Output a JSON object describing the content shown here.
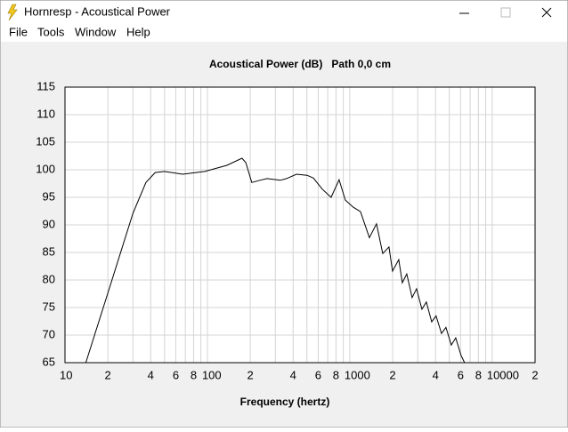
{
  "window": {
    "title": "Hornresp - Acoustical Power"
  },
  "menu": [
    "File",
    "Tools",
    "Window",
    "Help"
  ],
  "chart_data": {
    "type": "line",
    "title": "Acoustical Power (dB)   Path 0,0 cm",
    "x_label": "Frequency (hertz)",
    "x_scale": "log",
    "xlim": [
      10,
      20000
    ],
    "xticks": [
      10,
      {
        "value": 20,
        "label": "2"
      },
      {
        "value": 40,
        "label": "4"
      },
      {
        "value": 60,
        "label": "6"
      },
      {
        "value": 80,
        "label": "8"
      },
      100,
      {
        "value": 200,
        "label": "2"
      },
      {
        "value": 400,
        "label": "4"
      },
      {
        "value": 600,
        "label": "6"
      },
      {
        "value": 800,
        "label": "8"
      },
      1000,
      {
        "value": 2000,
        "label": "2"
      },
      {
        "value": 4000,
        "label": "4"
      },
      {
        "value": 6000,
        "label": "6"
      },
      {
        "value": 8000,
        "label": "8"
      },
      10000,
      {
        "value": 20000,
        "label": "2"
      }
    ],
    "x_minor_gridlines": [
      30,
      50,
      70,
      90,
      300,
      500,
      700,
      900,
      3000,
      5000,
      7000,
      9000
    ],
    "ylim": [
      65,
      115
    ],
    "yticks": [
      65,
      70,
      75,
      80,
      85,
      90,
      95,
      100,
      105,
      110,
      115
    ],
    "grid": true,
    "x": [
      14,
      20,
      30,
      37,
      43,
      50,
      67,
      96,
      137,
      175,
      186,
      205,
      234,
      262,
      325,
      360,
      422,
      501,
      555,
      640,
      739,
      841,
      931,
      1059,
      1189,
      1373,
      1540,
      1703,
      1884,
      1995,
      2208,
      2339,
      2512,
      2738,
      2944,
      3208,
      3447,
      3758,
      4036,
      4406,
      4732,
      5158,
      5546,
      6042,
      6398
    ],
    "series": [
      {
        "color": "#000000",
        "values": [
          65,
          77.6,
          92.1,
          97.7,
          99.5,
          99.7,
          99.2,
          99.7,
          100.8,
          102.1,
          101.3,
          97.7,
          98.1,
          98.4,
          98.1,
          98.4,
          99.2,
          99.0,
          98.5,
          96.5,
          95.0,
          98.2,
          94.5,
          93.2,
          92.4,
          87.7,
          90.2,
          84.8,
          86.0,
          81.6,
          83.7,
          79.5,
          81.1,
          76.8,
          78.4,
          74.7,
          76.0,
          72.4,
          73.5,
          70.3,
          71.4,
          68.2,
          69.5,
          66.3,
          65
        ]
      }
    ]
  }
}
